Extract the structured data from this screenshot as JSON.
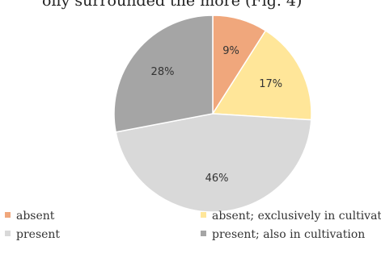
{
  "top_text": "olly surrounded the more (Fig. 4)",
  "chart_data": {
    "type": "pie",
    "series": [
      {
        "label": "absent",
        "value": 9,
        "display": "9%",
        "color": "#f0a77c"
      },
      {
        "label": "absent; exclusively in cultivation",
        "value": 17,
        "display": "17%",
        "color": "#ffe699"
      },
      {
        "label": "present",
        "value": 46,
        "display": "46%",
        "color": "#d9d9d9"
      },
      {
        "label": "present; also in cultivation",
        "value": 28,
        "display": "28%",
        "color": "#a5a5a5"
      }
    ],
    "start_angle_deg": 0,
    "direction": "clockwise",
    "legend_position": "bottom"
  }
}
